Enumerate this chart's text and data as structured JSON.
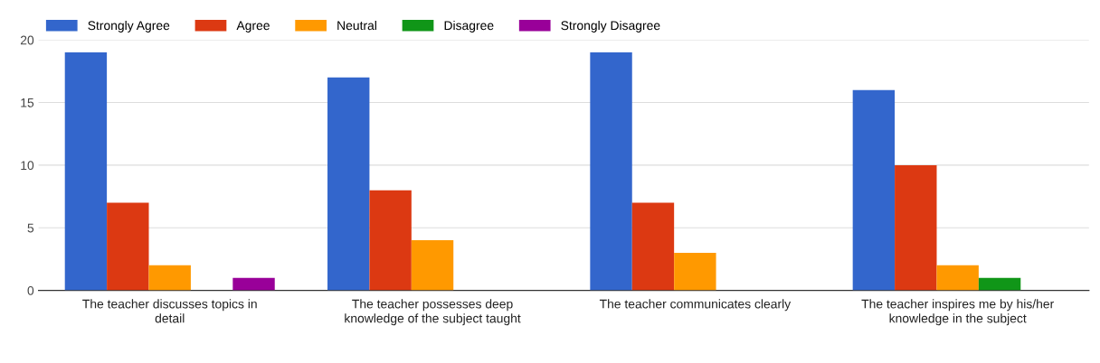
{
  "chart_data": {
    "type": "bar",
    "categories": [
      "The teacher discusses topics in detail",
      "The teacher possesses deep knowledge of the subject taught",
      "The teacher communicates clearly",
      "The teacher inspires me by his/her knowledge in the subject"
    ],
    "series": [
      {
        "name": "Strongly Agree",
        "color": "#3366cc",
        "values": [
          19,
          17,
          19,
          16
        ]
      },
      {
        "name": "Agree",
        "color": "#dc3912",
        "values": [
          7,
          8,
          7,
          10
        ]
      },
      {
        "name": "Neutral",
        "color": "#ff9900",
        "values": [
          2,
          4,
          3,
          2
        ]
      },
      {
        "name": "Disagree",
        "color": "#109618",
        "values": [
          0,
          0,
          0,
          1
        ]
      },
      {
        "name": "Strongly Disagree",
        "color": "#990099",
        "values": [
          1,
          0,
          0,
          0
        ]
      }
    ],
    "ylim": [
      0,
      20
    ],
    "yticks": [
      0,
      5,
      10,
      15,
      20
    ],
    "grid": "y",
    "legend": "top left"
  }
}
